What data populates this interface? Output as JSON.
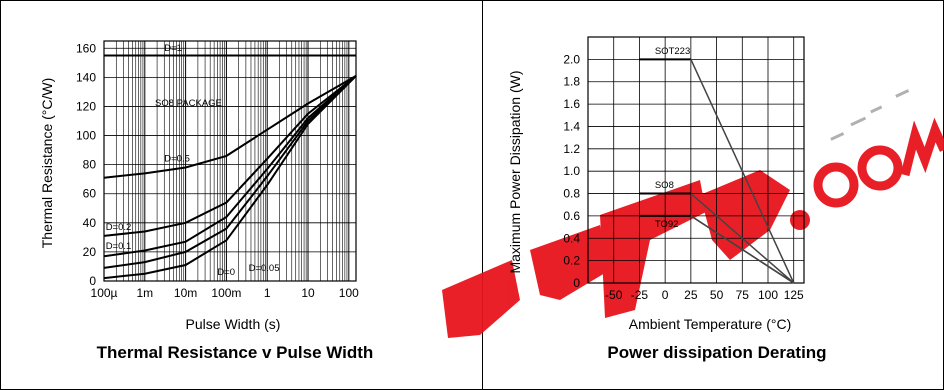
{
  "chart_data": [
    {
      "type": "line",
      "title": "Thermal Resistance v Pulse Width",
      "xlabel": "Pulse Width (s)",
      "ylabel": "Thermal Resistance (°C/W)",
      "x_scale": "log",
      "xlim": [
        0.0001,
        150
      ],
      "ylim": [
        0,
        165
      ],
      "x_ticks": [
        0.0001,
        0.001,
        0.01,
        0.1,
        1,
        10,
        100
      ],
      "x_tick_labels": [
        "100µ",
        "1m",
        "10m",
        "100m",
        "1",
        "10",
        "100"
      ],
      "y_ticks": [
        0,
        20,
        40,
        60,
        80,
        100,
        120,
        140,
        160
      ],
      "y_tick_labels": [
        "0",
        "20",
        "40",
        "60",
        "80",
        "100",
        "120",
        "140",
        "160"
      ],
      "grid": true,
      "annotation": "SO8 PACKAGE",
      "series": [
        {
          "name": "D=1",
          "x": [
            0.0001,
            150
          ],
          "y": [
            155,
            155
          ]
        },
        {
          "name": "D=0.5",
          "x": [
            0.0001,
            0.001,
            0.01,
            0.1,
            1,
            10,
            150
          ],
          "y": [
            71,
            74,
            78,
            86,
            104,
            122,
            141
          ]
        },
        {
          "name": "D=0.2",
          "x": [
            0.0001,
            0.001,
            0.01,
            0.1,
            1,
            10,
            150
          ],
          "y": [
            31,
            34,
            40,
            54,
            84,
            115,
            141
          ]
        },
        {
          "name": "D=0.1",
          "x": [
            0.0001,
            0.001,
            0.01,
            0.1,
            1,
            10,
            150
          ],
          "y": [
            17,
            21,
            27,
            44,
            77,
            112,
            141
          ]
        },
        {
          "name": "D=0.05",
          "x": [
            0.0001,
            0.001,
            0.01,
            0.1,
            1,
            10,
            150
          ],
          "y": [
            9,
            13,
            20,
            36,
            72,
            110,
            141
          ]
        },
        {
          "name": "D=0",
          "x": [
            0.0001,
            0.001,
            0.01,
            0.1,
            1,
            10,
            150
          ],
          "y": [
            2,
            5,
            11,
            28,
            66,
            108,
            141
          ]
        }
      ]
    },
    {
      "type": "line",
      "title": "Power dissipation Derating",
      "xlabel": "Ambient Temperature (°C)",
      "ylabel": "Maximum Power Dissipation (W)",
      "xlim": [
        -75,
        135
      ],
      "ylim": [
        0,
        2.2
      ],
      "x_ticks": [
        -50,
        -25,
        0,
        25,
        50,
        75,
        100,
        125
      ],
      "x_tick_labels": [
        "-50",
        "-25",
        "0",
        "25",
        "50",
        "75",
        "100",
        "125"
      ],
      "y_ticks": [
        0,
        0.2,
        0.4,
        0.6,
        0.8,
        1.0,
        1.2,
        1.4,
        1.6,
        1.8,
        2.0
      ],
      "y_tick_labels": [
        "0",
        "0.2",
        "0.4",
        "0.6",
        "0.8",
        "1.0",
        "1.2",
        "1.4",
        "1.6",
        "1.8",
        "2.0"
      ],
      "grid": true,
      "series": [
        {
          "name": "SOT223",
          "x": [
            -25,
            25,
            125
          ],
          "y": [
            2.0,
            2.0,
            0
          ]
        },
        {
          "name": "SO8",
          "x": [
            -25,
            25,
            125
          ],
          "y": [
            0.8,
            0.8,
            0
          ]
        },
        {
          "name": "TO92",
          "x": [
            -25,
            25,
            125
          ],
          "y": [
            0.6,
            0.6,
            0
          ]
        }
      ],
      "extra_lines": [
        {
          "x": [
            25,
            125
          ],
          "y": [
            0.6,
            0
          ]
        }
      ]
    }
  ],
  "watermark": {
    "text": "EPW.com",
    "color": "#e8141c"
  }
}
